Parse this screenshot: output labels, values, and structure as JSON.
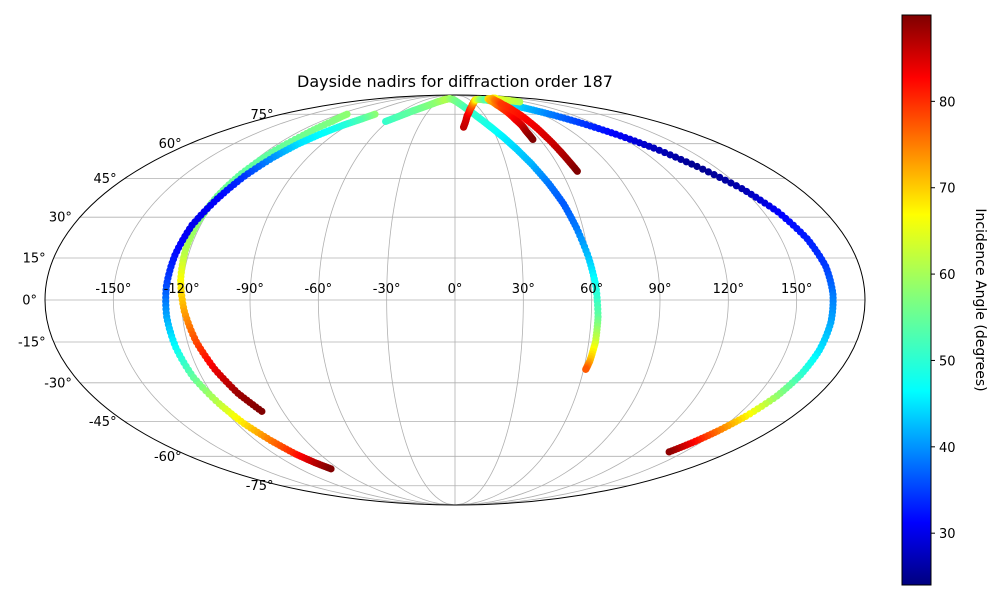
{
  "chart_data": {
    "type": "scatter",
    "title": "Dayside nadirs for diffraction order 187",
    "projection": "mollweide",
    "x_ticks": [
      "-150°",
      "-120°",
      "-90°",
      "-60°",
      "-30°",
      "0°",
      "30°",
      "60°",
      "90°",
      "120°",
      "150°"
    ],
    "x_tick_values": [
      -150,
      -120,
      -90,
      -60,
      -30,
      0,
      30,
      60,
      90,
      120,
      150
    ],
    "y_ticks": [
      "-75°",
      "-60°",
      "-45°",
      "-30°",
      "-15°",
      "0°",
      "15°",
      "30°",
      "45°",
      "60°",
      "75°"
    ],
    "y_tick_values": [
      -75,
      -60,
      -45,
      -30,
      -15,
      0,
      15,
      30,
      45,
      60,
      75
    ],
    "grid": true,
    "colorbar": {
      "label": "Incidence Angle (degrees)",
      "colormap": "jet",
      "range": [
        24,
        90
      ],
      "ticks": [
        30,
        40,
        50,
        60,
        70,
        80
      ]
    },
    "tracks": [
      {
        "lon": [
          -62,
          -55,
          -48,
          -42,
          -36,
          -30,
          -25,
          -20,
          -15,
          -10,
          -5,
          0,
          5,
          10,
          15,
          20,
          25,
          30,
          35,
          40,
          45,
          50,
          54,
          57,
          60,
          62,
          63,
          63,
          62,
          61
        ],
        "lat": [
          71,
          74,
          77,
          79,
          81,
          83,
          84,
          85,
          85.5,
          85.5,
          85,
          84,
          82.5,
          80.5,
          78,
          75,
          71.5,
          67.5,
          63,
          57.5,
          51,
          43,
          35,
          26,
          15,
          5,
          -6,
          -15,
          -22,
          -25
        ],
        "incidence": [
          52,
          54,
          55,
          56,
          57,
          58,
          59,
          60,
          60,
          59,
          58,
          57,
          56,
          55,
          53,
          52,
          51,
          50,
          48,
          46,
          44,
          40,
          38,
          40,
          45,
          50,
          55,
          62,
          70,
          76
        ]
      },
      {
        "lon": [
          7,
          12,
          18,
          25,
          32,
          40,
          48,
          55,
          62,
          70,
          80,
          90,
          100,
          110,
          120,
          130,
          140,
          150,
          157,
          162,
          165,
          166,
          166,
          165,
          163,
          160,
          155,
          150,
          145,
          140
        ],
        "lat": [
          68,
          74,
          78,
          81,
          83,
          84.5,
          85,
          85,
          84.5,
          83,
          81,
          78,
          74.5,
          70,
          64.5,
          58,
          50,
          41,
          32,
          22,
          12,
          2,
          -8,
          -18,
          -27,
          -35,
          -43,
          -49,
          -54,
          -58
        ],
        "incidence": [
          86,
          84,
          80,
          76,
          72,
          68,
          63,
          58,
          54,
          52,
          48,
          44,
          40,
          36,
          32,
          28,
          25,
          27,
          32,
          34,
          36,
          40,
          43,
          47,
          52,
          58,
          66,
          74,
          82,
          89
        ]
      },
      {
        "lon": [
          -112,
          -110,
          -112,
          -116,
          -119,
          -121,
          -122,
          -122,
          -121,
          -119,
          -116,
          -112,
          -107,
          -101
        ],
        "lat": [
          75,
          71,
          64,
          56,
          47,
          38,
          28,
          18,
          7,
          -4,
          -15,
          -25,
          -34,
          -41
        ],
        "incidence": [
          58,
          57,
          56,
          55,
          55,
          56,
          58,
          60,
          65,
          71,
          77,
          83,
          88,
          90
        ]
      },
      {
        "lon": [
          -83,
          -88,
          -94,
          -100,
          -106,
          -111,
          -116,
          -120,
          -124,
          -126,
          -127,
          -127,
          -126,
          -124,
          -120,
          -116,
          -111,
          -106,
          -101,
          -96
        ],
        "lat": [
          75,
          72,
          69,
          65,
          60,
          54,
          46,
          37,
          27,
          16,
          5,
          -6,
          -17,
          -28,
          -38,
          -46,
          -53,
          -59,
          -63,
          -66
        ],
        "incidence": [
          58,
          54,
          51,
          49,
          47,
          42,
          36,
          32,
          31,
          33,
          37,
          43,
          49,
          55,
          61,
          67,
          74,
          80,
          86,
          90
        ]
      },
      {
        "lon": [
          110,
          100,
          88,
          75,
          66,
          60,
          58,
          57,
          56,
          56,
          55,
          55
        ],
        "lat": [
          83,
          84.5,
          85.5,
          85.5,
          84,
          81,
          78,
          75,
          72,
          69,
          66,
          62
        ],
        "incidence": [
          60,
          62,
          64,
          67,
          70,
          74,
          78,
          80,
          82,
          84,
          87,
          90
        ]
      },
      {
        "lon": [
          100,
          92,
          84,
          76,
          70,
          67,
          66,
          66,
          67,
          68,
          69
        ],
        "lat": [
          86,
          86,
          85.5,
          84,
          81.5,
          77,
          71,
          64,
          57,
          52,
          48
        ],
        "incidence": [
          64,
          66,
          70,
          74,
          78,
          80,
          82,
          84,
          86,
          88,
          90
        ]
      }
    ]
  }
}
